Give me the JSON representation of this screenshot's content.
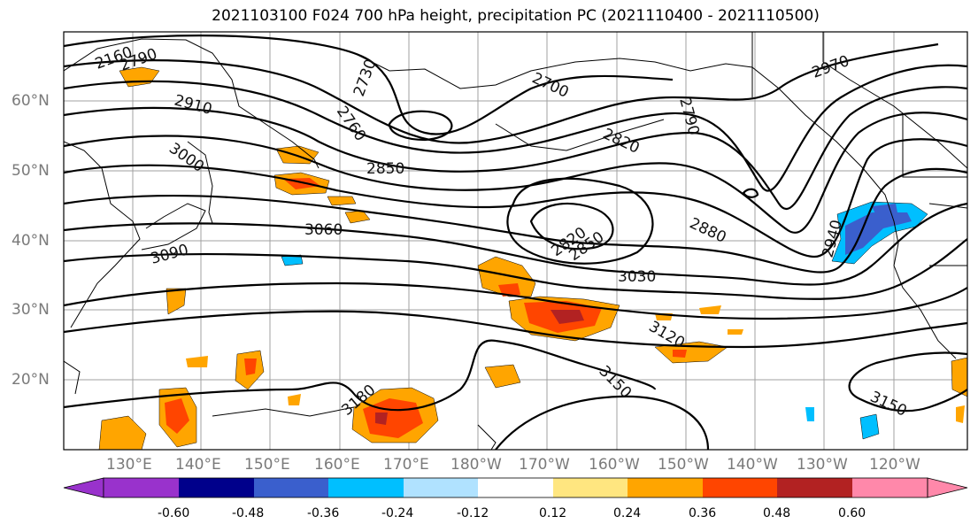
{
  "title": "2021103100 F024 700 hPa height, precipitation PC (2021110400 - 2021110500)",
  "map": {
    "projection": "equirectangular",
    "extent": {
      "lon_min": 120,
      "lon_max": 252,
      "lat_min": 10,
      "lat_max": 70
    },
    "lat_labels": [
      "60°N",
      "50°N",
      "40°N",
      "30°N",
      "20°N"
    ],
    "lon_labels": [
      "130°E",
      "140°E",
      "150°E",
      "160°E",
      "170°E",
      "180°W",
      "170°W",
      "160°W",
      "150°W",
      "140°W",
      "130°W",
      "120°W"
    ],
    "contour_labels": [
      "2160",
      "2790",
      "2910",
      "3000",
      "2730",
      "2760",
      "2700",
      "2790",
      "2820",
      "2850",
      "3060",
      "3090",
      "2820",
      "2850",
      "2880",
      "3030",
      "2940",
      "3120",
      "3150",
      "3180",
      "3150",
      "2970"
    ],
    "gridlines": true,
    "coastlines": true
  },
  "colorbar": {
    "levels": [
      "-0.60",
      "-0.48",
      "-0.36",
      "-0.24",
      "-0.12",
      "0.12",
      "0.24",
      "0.36",
      "0.48",
      "0.60"
    ],
    "colors": [
      "#9932cc",
      "#00008b",
      "#3a5fcd",
      "#00bfff",
      "#b0e2ff",
      "#ffffff",
      "#ffe680",
      "#ffa500",
      "#ff4500",
      "#b22222",
      "#ff88aa"
    ],
    "extend": "both"
  },
  "colors": {
    "contour": "#000000",
    "grid": "#a0a0a0",
    "axis_label": "#7a7a7a"
  }
}
